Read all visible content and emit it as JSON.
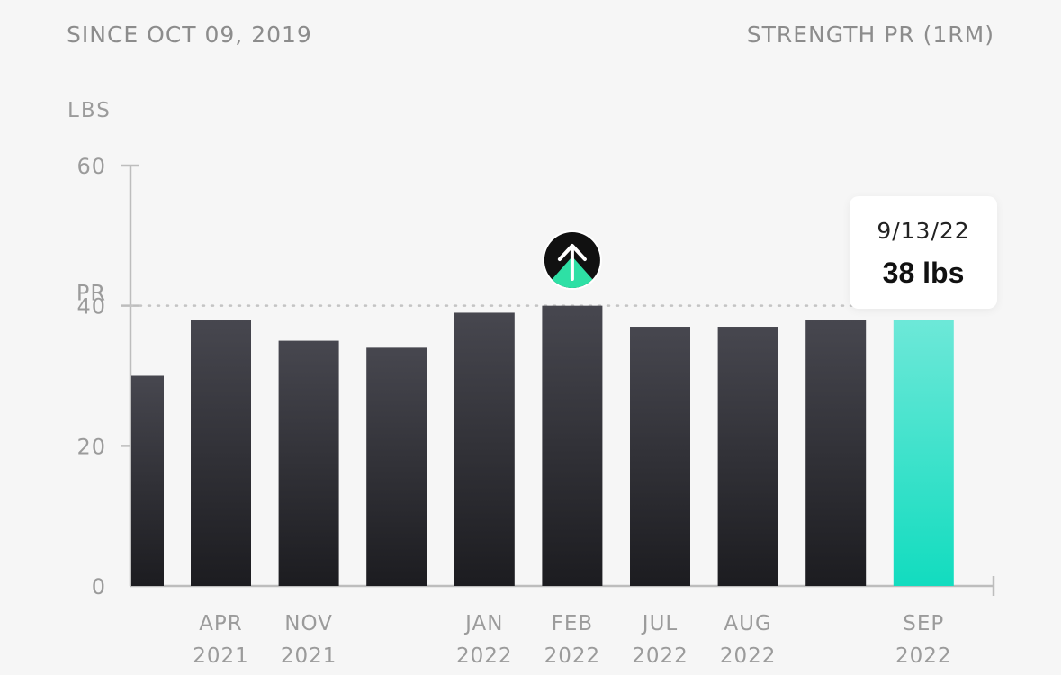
{
  "header": {
    "since": "SINCE OCT 09, 2019",
    "metric": "STRENGTH PR (1RM)"
  },
  "colors": {
    "bar_top": "#47474f",
    "bar_bottom": "#1c1c20",
    "highlight_top": "#6de8d8",
    "highlight_bottom": "#12dcbf",
    "axis": "#bdbdbd",
    "pr_line": "#c4c4c4",
    "pr_icon_bg": "#111111",
    "pr_icon_accent": "#2ee0a5"
  },
  "tooltip": {
    "date": "9/13/22",
    "value": "38 lbs"
  },
  "chart_data": {
    "type": "bar",
    "ylabel": "LBS",
    "ylim": [
      0,
      60
    ],
    "yticks": [
      "0",
      "20",
      "40",
      "60"
    ],
    "pr_label": "PR",
    "pr_value": 40,
    "categories": [
      {
        "line1": "",
        "line2": ""
      },
      {
        "line1": "APR",
        "line2": "2021"
      },
      {
        "line1": "NOV",
        "line2": "2021"
      },
      {
        "line1": "",
        "line2": ""
      },
      {
        "line1": "JAN",
        "line2": "2022"
      },
      {
        "line1": "FEB",
        "line2": "2022"
      },
      {
        "line1": "JUL",
        "line2": "2022"
      },
      {
        "line1": "AUG",
        "line2": "2022"
      },
      {
        "line1": "",
        "line2": ""
      },
      {
        "line1": "SEP",
        "line2": "2022"
      }
    ],
    "values": [
      30,
      38,
      35,
      34,
      39,
      40,
      37,
      37,
      38,
      38
    ],
    "pr_bar_index": 5,
    "highlight_index": 9
  }
}
